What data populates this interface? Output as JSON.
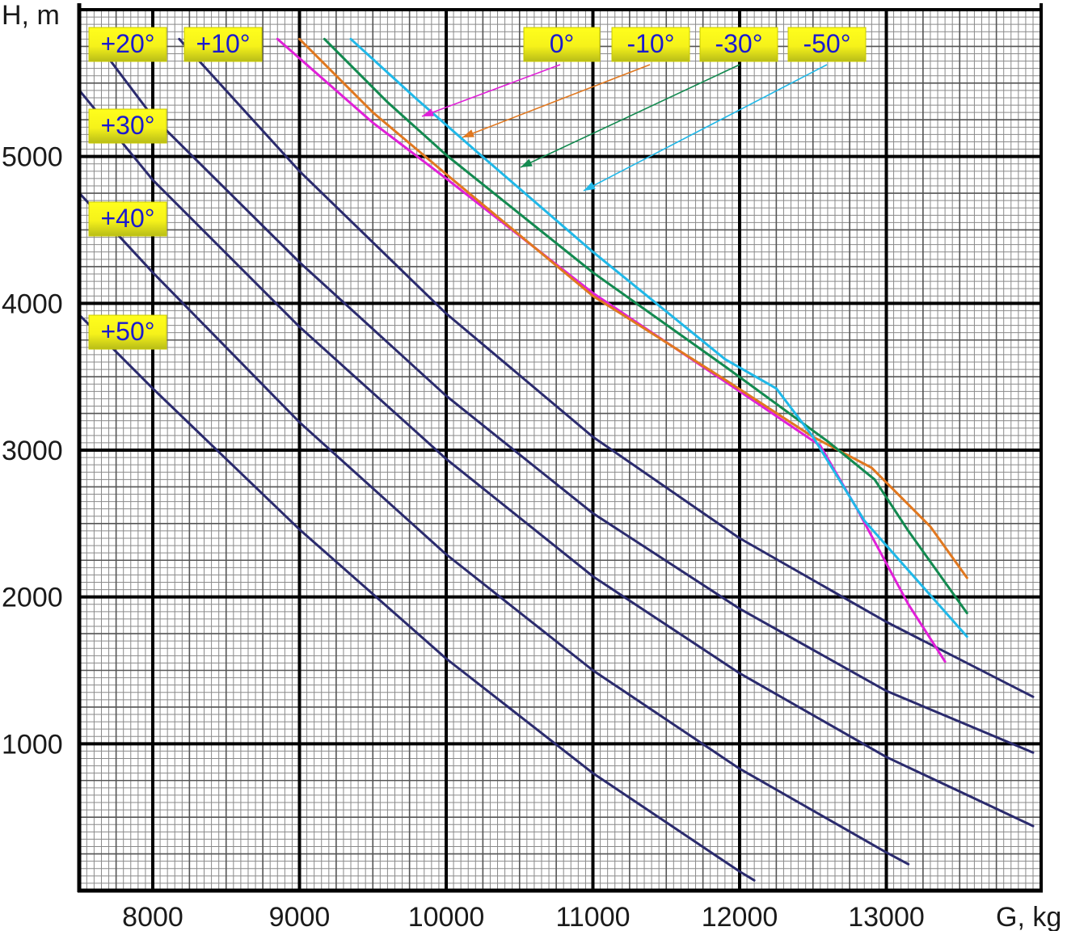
{
  "chart_data": {
    "type": "line",
    "title": "",
    "xlabel": "G, kg",
    "ylabel": "H, m",
    "xlim": [
      7500,
      14000
    ],
    "ylim": [
      0,
      5800
    ],
    "grid": true,
    "x_ticks": [
      8000,
      9000,
      10000,
      11000,
      12000,
      13000
    ],
    "y_ticks": [
      1000,
      2000,
      3000,
      4000,
      5000
    ],
    "x_tick_labels": [
      "8000",
      "9000",
      "10000",
      "11000",
      "12000",
      "13000"
    ],
    "y_tick_labels": [
      "1000",
      "2000",
      "3000",
      "4000",
      "5000"
    ],
    "series": [
      {
        "name": "+10°",
        "label": "+10°",
        "color": "#2b2b6e",
        "points": [
          [
            8180,
            5800
          ],
          [
            9000,
            4900
          ],
          [
            10000,
            3930
          ],
          [
            11000,
            3090
          ],
          [
            12000,
            2400
          ],
          [
            13000,
            1830
          ],
          [
            14000,
            1320
          ]
        ]
      },
      {
        "name": "+20°",
        "label": "+20°",
        "color": "#2b2b6e",
        "points": [
          [
            7600,
            5800
          ],
          [
            8000,
            5270
          ],
          [
            9000,
            4280
          ],
          [
            10000,
            3370
          ],
          [
            11000,
            2570
          ],
          [
            12000,
            1920
          ],
          [
            13000,
            1360
          ],
          [
            14000,
            940
          ]
        ]
      },
      {
        "name": "+30°",
        "label": "+30°",
        "color": "#2b2b6e",
        "points": [
          [
            7500,
            5450
          ],
          [
            8000,
            4840
          ],
          [
            9000,
            3840
          ],
          [
            10000,
            2940
          ],
          [
            11000,
            2140
          ],
          [
            12000,
            1480
          ],
          [
            13000,
            910
          ],
          [
            14000,
            440
          ]
        ]
      },
      {
        "name": "+40°",
        "label": "+40°",
        "color": "#2b2b6e",
        "points": [
          [
            7500,
            4750
          ],
          [
            8000,
            4210
          ],
          [
            9000,
            3190
          ],
          [
            10000,
            2290
          ],
          [
            11000,
            1500
          ],
          [
            12000,
            830
          ],
          [
            13000,
            260
          ],
          [
            13150,
            180
          ]
        ]
      },
      {
        "name": "+50°",
        "label": "+50°",
        "color": "#2b2b6e",
        "points": [
          [
            7500,
            3920
          ],
          [
            8000,
            3420
          ],
          [
            9000,
            2460
          ],
          [
            10000,
            1580
          ],
          [
            11000,
            800
          ],
          [
            12000,
            130
          ],
          [
            12100,
            70
          ]
        ]
      },
      {
        "name": "0°",
        "label": "0°",
        "color": "#e020d8",
        "points": [
          [
            8850,
            5800
          ],
          [
            9500,
            5230
          ],
          [
            10000,
            4850
          ],
          [
            11000,
            4070
          ],
          [
            12000,
            3400
          ],
          [
            12550,
            3030
          ],
          [
            12800,
            2600
          ],
          [
            13150,
            1950
          ],
          [
            13400,
            1560
          ]
        ]
      },
      {
        "name": "-10°",
        "label": "-10°",
        "color": "#e07820",
        "points": [
          [
            9000,
            5800
          ],
          [
            9500,
            5300
          ],
          [
            10000,
            4880
          ],
          [
            11000,
            4050
          ],
          [
            11900,
            3480
          ],
          [
            12500,
            3090
          ],
          [
            12900,
            2880
          ],
          [
            13300,
            2480
          ],
          [
            13550,
            2130
          ]
        ]
      },
      {
        "name": "-30°",
        "label": "-30°",
        "color": "#138a50",
        "points": [
          [
            9170,
            5800
          ],
          [
            9600,
            5370
          ],
          [
            10000,
            5010
          ],
          [
            11000,
            4210
          ],
          [
            11900,
            3570
          ],
          [
            12600,
            3060
          ],
          [
            12920,
            2800
          ],
          [
            13150,
            2450
          ],
          [
            13550,
            1890
          ]
        ]
      },
      {
        "name": "-50°",
        "label": "-50°",
        "color": "#20b8e8",
        "points": [
          [
            9350,
            5800
          ],
          [
            9800,
            5390
          ],
          [
            10200,
            5040
          ],
          [
            11000,
            4350
          ],
          [
            11900,
            3620
          ],
          [
            12250,
            3420
          ],
          [
            12500,
            3090
          ],
          [
            12850,
            2520
          ],
          [
            13550,
            1730
          ]
        ]
      }
    ],
    "annotations": [
      {
        "text": "0°",
        "points_to_series": "0°"
      },
      {
        "text": "-10°",
        "points_to_series": "-10°"
      },
      {
        "text": "-30°",
        "points_to_series": "-30°"
      },
      {
        "text": "-50°",
        "points_to_series": "-50°"
      }
    ]
  }
}
